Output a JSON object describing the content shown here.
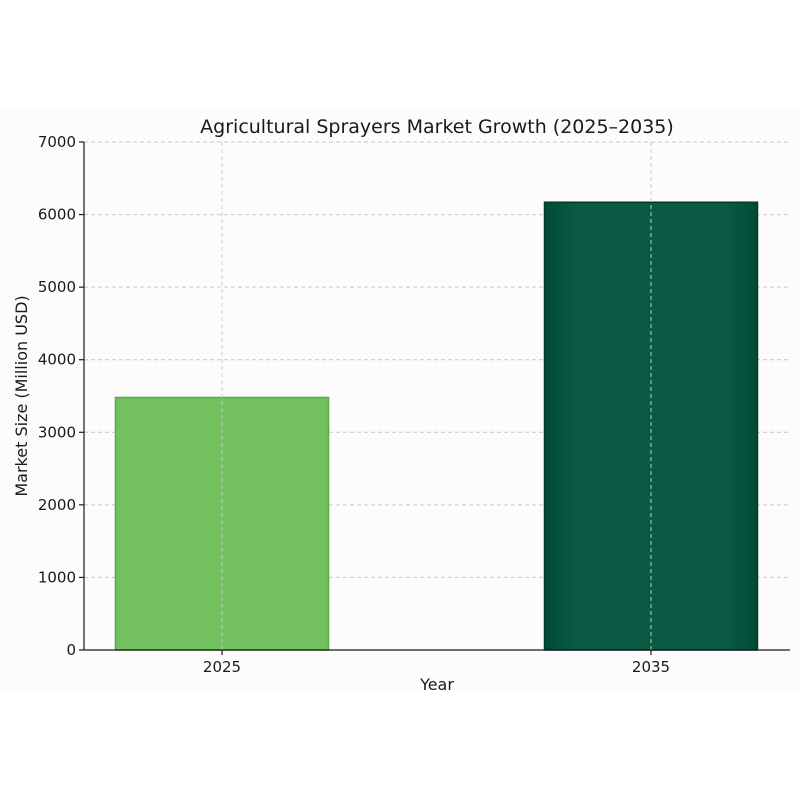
{
  "chart_data": {
    "type": "bar",
    "title": "Agricultural Sprayers Market Growth (2025–2035)",
    "xlabel": "Year",
    "ylabel": "Market Size (Million USD)",
    "categories": [
      "2025",
      "2035"
    ],
    "values": [
      3480,
      6170
    ],
    "ylim": [
      0,
      7000
    ],
    "yticks": [
      0,
      1000,
      2000,
      3000,
      4000,
      5000,
      6000,
      7000
    ],
    "grid": true,
    "colors": [
      "#72c05e",
      "#0a5a44"
    ],
    "edge_colors": [
      "#5aa84a",
      "#003c2a"
    ],
    "background": "#fdfbfb"
  }
}
